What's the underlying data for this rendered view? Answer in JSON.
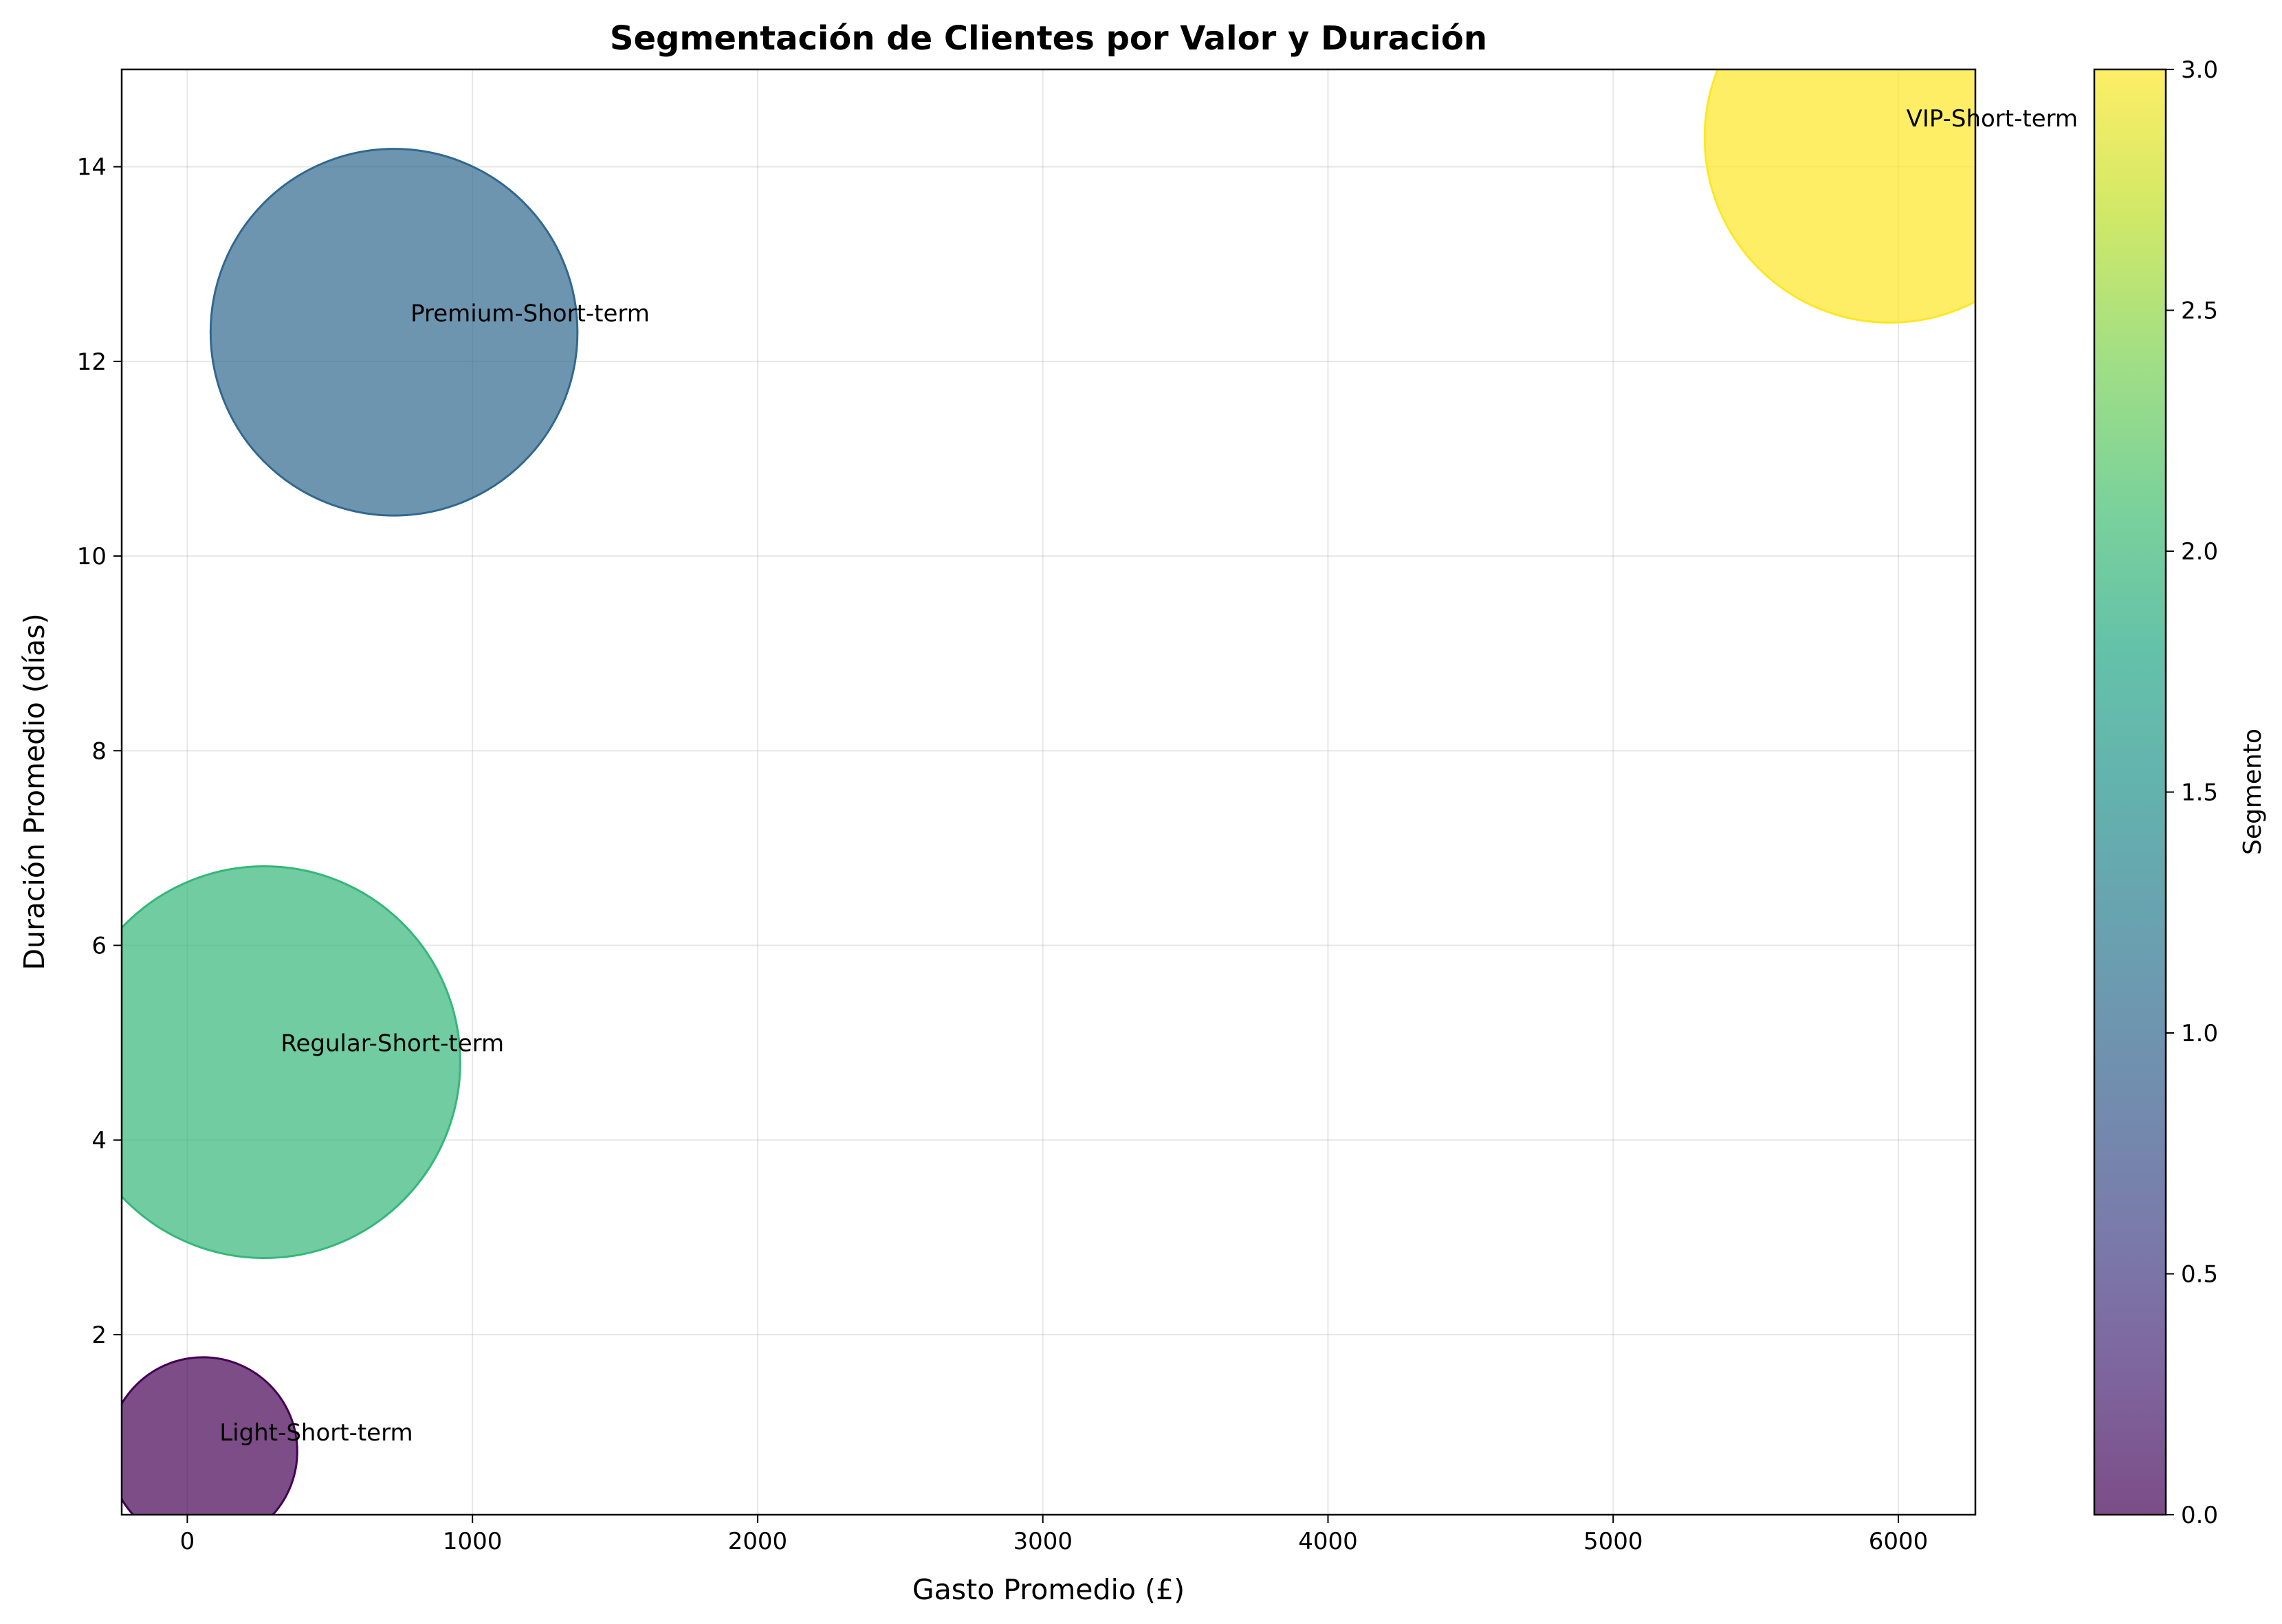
{
  "chart_data": {
    "type": "scatter",
    "title": "Segmentación de Clientes por Valor y Duración",
    "xlabel": "Gasto Promedio (£)",
    "ylabel": "Duración Promedio (días)",
    "xlim": [
      -230,
      6270
    ],
    "ylim": [
      0.15,
      15
    ],
    "xticks": [
      0,
      1000,
      2000,
      3000,
      4000,
      5000,
      6000
    ],
    "yticks": [
      2,
      4,
      6,
      8,
      10,
      12,
      14
    ],
    "grid": true,
    "points": [
      {
        "label": "Light-Short-term",
        "x": 55,
        "y": 0.8,
        "segment": 0,
        "size_metric": 280
      },
      {
        "label": "Premium-Short-term",
        "x": 725,
        "y": 12.3,
        "segment": 1,
        "size_metric": 1060
      },
      {
        "label": "Regular-Short-term",
        "x": 270,
        "y": 4.8,
        "segment": 2,
        "size_metric": 1210
      },
      {
        "label": "VIP-Short-term",
        "x": 5970,
        "y": 14.3,
        "segment": 3,
        "size_metric": 1080
      }
    ],
    "colorbar": {
      "label": "Segmento",
      "min": 0,
      "max": 3,
      "ticks": [
        "0.0",
        "0.5",
        "1.0",
        "1.5",
        "2.0",
        "2.5",
        "3.0"
      ],
      "colormap": "viridis"
    },
    "colors": {
      "segment_0": "#440154",
      "segment_1": "#31688e",
      "segment_2": "#35b779",
      "segment_3": "#fde725"
    },
    "alpha": 0.7
  }
}
